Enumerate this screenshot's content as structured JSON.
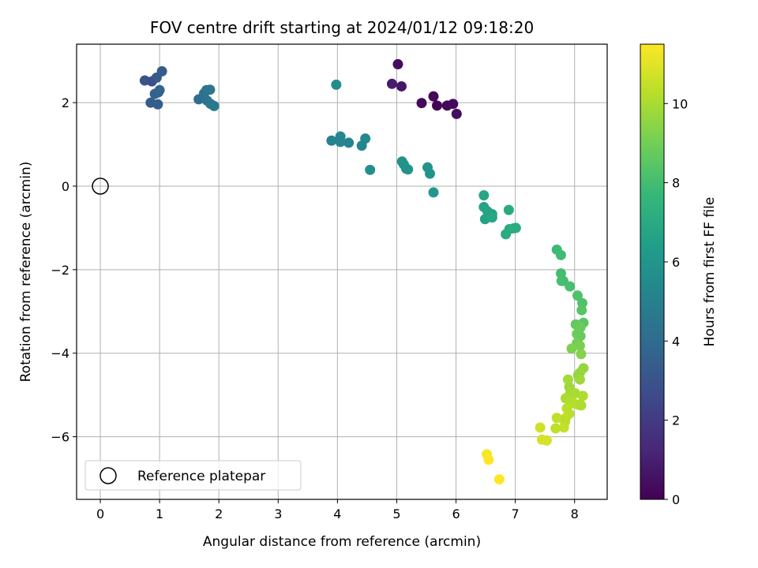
{
  "chart_data": {
    "type": "scatter",
    "title": "FOV centre drift starting at 2024/01/12 09:18:20",
    "xlabel": "Angular distance from reference (arcmin)",
    "ylabel": "Rotation from reference (arcmin)",
    "xlim": [
      -0.4,
      8.55
    ],
    "ylim": [
      -7.5,
      3.4
    ],
    "x_ticks": [
      0,
      1,
      2,
      3,
      4,
      5,
      6,
      7,
      8
    ],
    "y_ticks": [
      -6,
      -4,
      -2,
      0,
      2
    ],
    "grid": true,
    "colormap": "viridis",
    "colorbar": {
      "label": "Hours from first FF file",
      "range": [
        0,
        11.5
      ],
      "ticks": [
        0,
        2,
        4,
        6,
        8,
        10
      ]
    },
    "legend": {
      "position": "lower-left",
      "entries": [
        {
          "label": "Reference platepar",
          "marker": "hollow-circle"
        }
      ]
    },
    "reference_point": {
      "x": 0,
      "y": 0
    },
    "series": [
      {
        "points": [
          [
            5.02,
            2.92,
            0.4
          ],
          [
            4.92,
            2.45,
            0.9
          ],
          [
            5.08,
            2.39,
            0.7
          ],
          [
            5.42,
            1.99,
            0.3
          ],
          [
            5.62,
            2.15,
            0.2
          ],
          [
            5.68,
            1.93,
            0.1
          ],
          [
            5.85,
            1.93,
            0.2
          ],
          [
            5.95,
            1.97,
            0.3
          ],
          [
            6.01,
            1.73,
            0.4
          ],
          [
            0.75,
            2.53,
            3.0
          ],
          [
            0.87,
            2.51,
            2.8
          ],
          [
            0.95,
            2.6,
            3.2
          ],
          [
            1.04,
            2.75,
            3.4
          ],
          [
            0.92,
            2.21,
            3.6
          ],
          [
            0.98,
            2.25,
            3.5
          ],
          [
            1.0,
            2.3,
            3.7
          ],
          [
            0.85,
            2.0,
            3.3
          ],
          [
            0.97,
            1.96,
            3.4
          ],
          [
            1.66,
            2.08,
            4.2
          ],
          [
            1.75,
            2.22,
            4.3
          ],
          [
            1.79,
            2.3,
            4.4
          ],
          [
            1.85,
            2.31,
            4.5
          ],
          [
            1.8,
            2.05,
            4.4
          ],
          [
            1.86,
            1.97,
            4.6
          ],
          [
            1.92,
            1.92,
            4.7
          ],
          [
            3.98,
            2.43,
            5.6
          ],
          [
            3.9,
            1.09,
            5.2
          ],
          [
            4.05,
            1.19,
            5.4
          ],
          [
            4.05,
            1.06,
            5.3
          ],
          [
            4.19,
            1.04,
            5.2
          ],
          [
            4.41,
            0.97,
            5.3
          ],
          [
            4.47,
            1.14,
            5.4
          ],
          [
            4.55,
            0.39,
            5.7
          ],
          [
            5.09,
            0.59,
            5.8
          ],
          [
            5.12,
            0.52,
            5.9
          ],
          [
            5.16,
            0.42,
            5.8
          ],
          [
            5.19,
            0.4,
            5.9
          ],
          [
            5.52,
            0.45,
            5.9
          ],
          [
            5.56,
            0.3,
            6.0
          ],
          [
            5.62,
            -0.15,
            6.1
          ],
          [
            6.47,
            -0.22,
            6.8
          ],
          [
            6.47,
            -0.5,
            6.6
          ],
          [
            6.53,
            -0.6,
            6.7
          ],
          [
            6.61,
            -0.67,
            6.7
          ],
          [
            6.49,
            -0.79,
            6.6
          ],
          [
            6.61,
            -0.75,
            6.8
          ],
          [
            6.89,
            -0.57,
            7.0
          ],
          [
            6.84,
            -1.15,
            7.1
          ],
          [
            6.9,
            -1.03,
            7.0
          ],
          [
            6.97,
            -1.01,
            7.2
          ],
          [
            7.01,
            -1.0,
            7.1
          ],
          [
            7.7,
            -1.52,
            7.8
          ],
          [
            7.77,
            -1.65,
            7.9
          ],
          [
            7.77,
            -2.09,
            8.0
          ],
          [
            7.78,
            -2.27,
            8.1
          ],
          [
            7.81,
            -2.27,
            8.0
          ],
          [
            7.92,
            -2.4,
            8.1
          ],
          [
            8.05,
            -2.62,
            8.2
          ],
          [
            8.13,
            -2.8,
            8.3
          ],
          [
            8.12,
            -2.97,
            8.4
          ],
          [
            8.15,
            -3.27,
            8.5
          ],
          [
            8.02,
            -3.31,
            8.6
          ],
          [
            8.06,
            -3.35,
            8.7
          ],
          [
            8.1,
            -3.38,
            8.8
          ],
          [
            8.04,
            -3.54,
            8.9
          ],
          [
            8.1,
            -3.59,
            8.8
          ],
          [
            8.04,
            -3.76,
            9.0
          ],
          [
            8.09,
            -3.82,
            9.1
          ],
          [
            7.95,
            -3.89,
            9.2
          ],
          [
            8.11,
            -4.02,
            9.3
          ],
          [
            8.15,
            -4.36,
            9.6
          ],
          [
            8.09,
            -4.47,
            9.7
          ],
          [
            8.06,
            -4.53,
            9.6
          ],
          [
            8.09,
            -4.63,
            9.8
          ],
          [
            7.89,
            -4.63,
            9.9
          ],
          [
            7.91,
            -4.81,
            9.8
          ],
          [
            7.93,
            -4.95,
            9.9
          ],
          [
            8.01,
            -4.96,
            10.0
          ],
          [
            8.14,
            -5.02,
            10.1
          ],
          [
            7.85,
            -5.08,
            10.0
          ],
          [
            7.92,
            -5.15,
            10.1
          ],
          [
            7.99,
            -5.2,
            10.2
          ],
          [
            8.06,
            -5.23,
            10.2
          ],
          [
            8.11,
            -5.25,
            10.1
          ],
          [
            7.87,
            -5.32,
            10.3
          ],
          [
            7.91,
            -5.45,
            10.3
          ],
          [
            7.85,
            -5.55,
            10.4
          ],
          [
            7.7,
            -5.55,
            10.4
          ],
          [
            7.84,
            -5.64,
            10.3
          ],
          [
            7.82,
            -5.78,
            10.5
          ],
          [
            7.68,
            -5.8,
            10.4
          ],
          [
            7.42,
            -5.78,
            10.7
          ],
          [
            7.45,
            -6.07,
            10.8
          ],
          [
            7.53,
            -6.09,
            10.8
          ],
          [
            6.52,
            -6.42,
            11.4
          ],
          [
            6.55,
            -6.55,
            11.5
          ],
          [
            6.73,
            -7.02,
            11.5
          ]
        ]
      }
    ]
  }
}
